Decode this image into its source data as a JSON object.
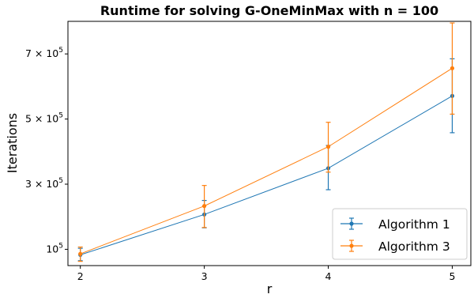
{
  "chart_data": {
    "type": "line",
    "title": "Runtime for solving G-OneMinMax with n = 100",
    "xlabel": "r",
    "ylabel": "Iterations",
    "x": [
      2,
      3,
      4,
      5
    ],
    "xlim": [
      1.9,
      5.15
    ],
    "ylim": [
      50000,
      800000
    ],
    "xticks": [
      2,
      3,
      4,
      5
    ],
    "xtick_labels": [
      "2",
      "3",
      "4",
      "5"
    ],
    "yticks": [
      100000,
      300000,
      500000,
      700000
    ],
    "ytick_labels": [
      {
        "mantissa": "",
        "base": "10",
        "exp": "5"
      },
      {
        "mantissa": "3 × ",
        "base": "10",
        "exp": "5"
      },
      {
        "mantissa": "5 × ",
        "base": "10",
        "exp": "5"
      },
      {
        "mantissa": "7 × ",
        "base": "10",
        "exp": "5"
      }
    ],
    "legend_position": "lower right",
    "grid": false,
    "series": [
      {
        "name": "Algorithm 1",
        "color": "#1f77b4",
        "values": [
          83000,
          207000,
          349000,
          571000
        ],
        "err_low": [
          65000,
          166000,
          283000,
          458000
        ],
        "err_high": [
          103000,
          250000,
          419000,
          685000
        ]
      },
      {
        "name": "Algorithm 3",
        "color": "#ff7f0e",
        "values": [
          86000,
          233000,
          415000,
          656000
        ],
        "err_low": [
          63000,
          167000,
          337000,
          515000
        ],
        "err_high": [
          107000,
          296000,
          490000,
          795000
        ]
      }
    ]
  }
}
